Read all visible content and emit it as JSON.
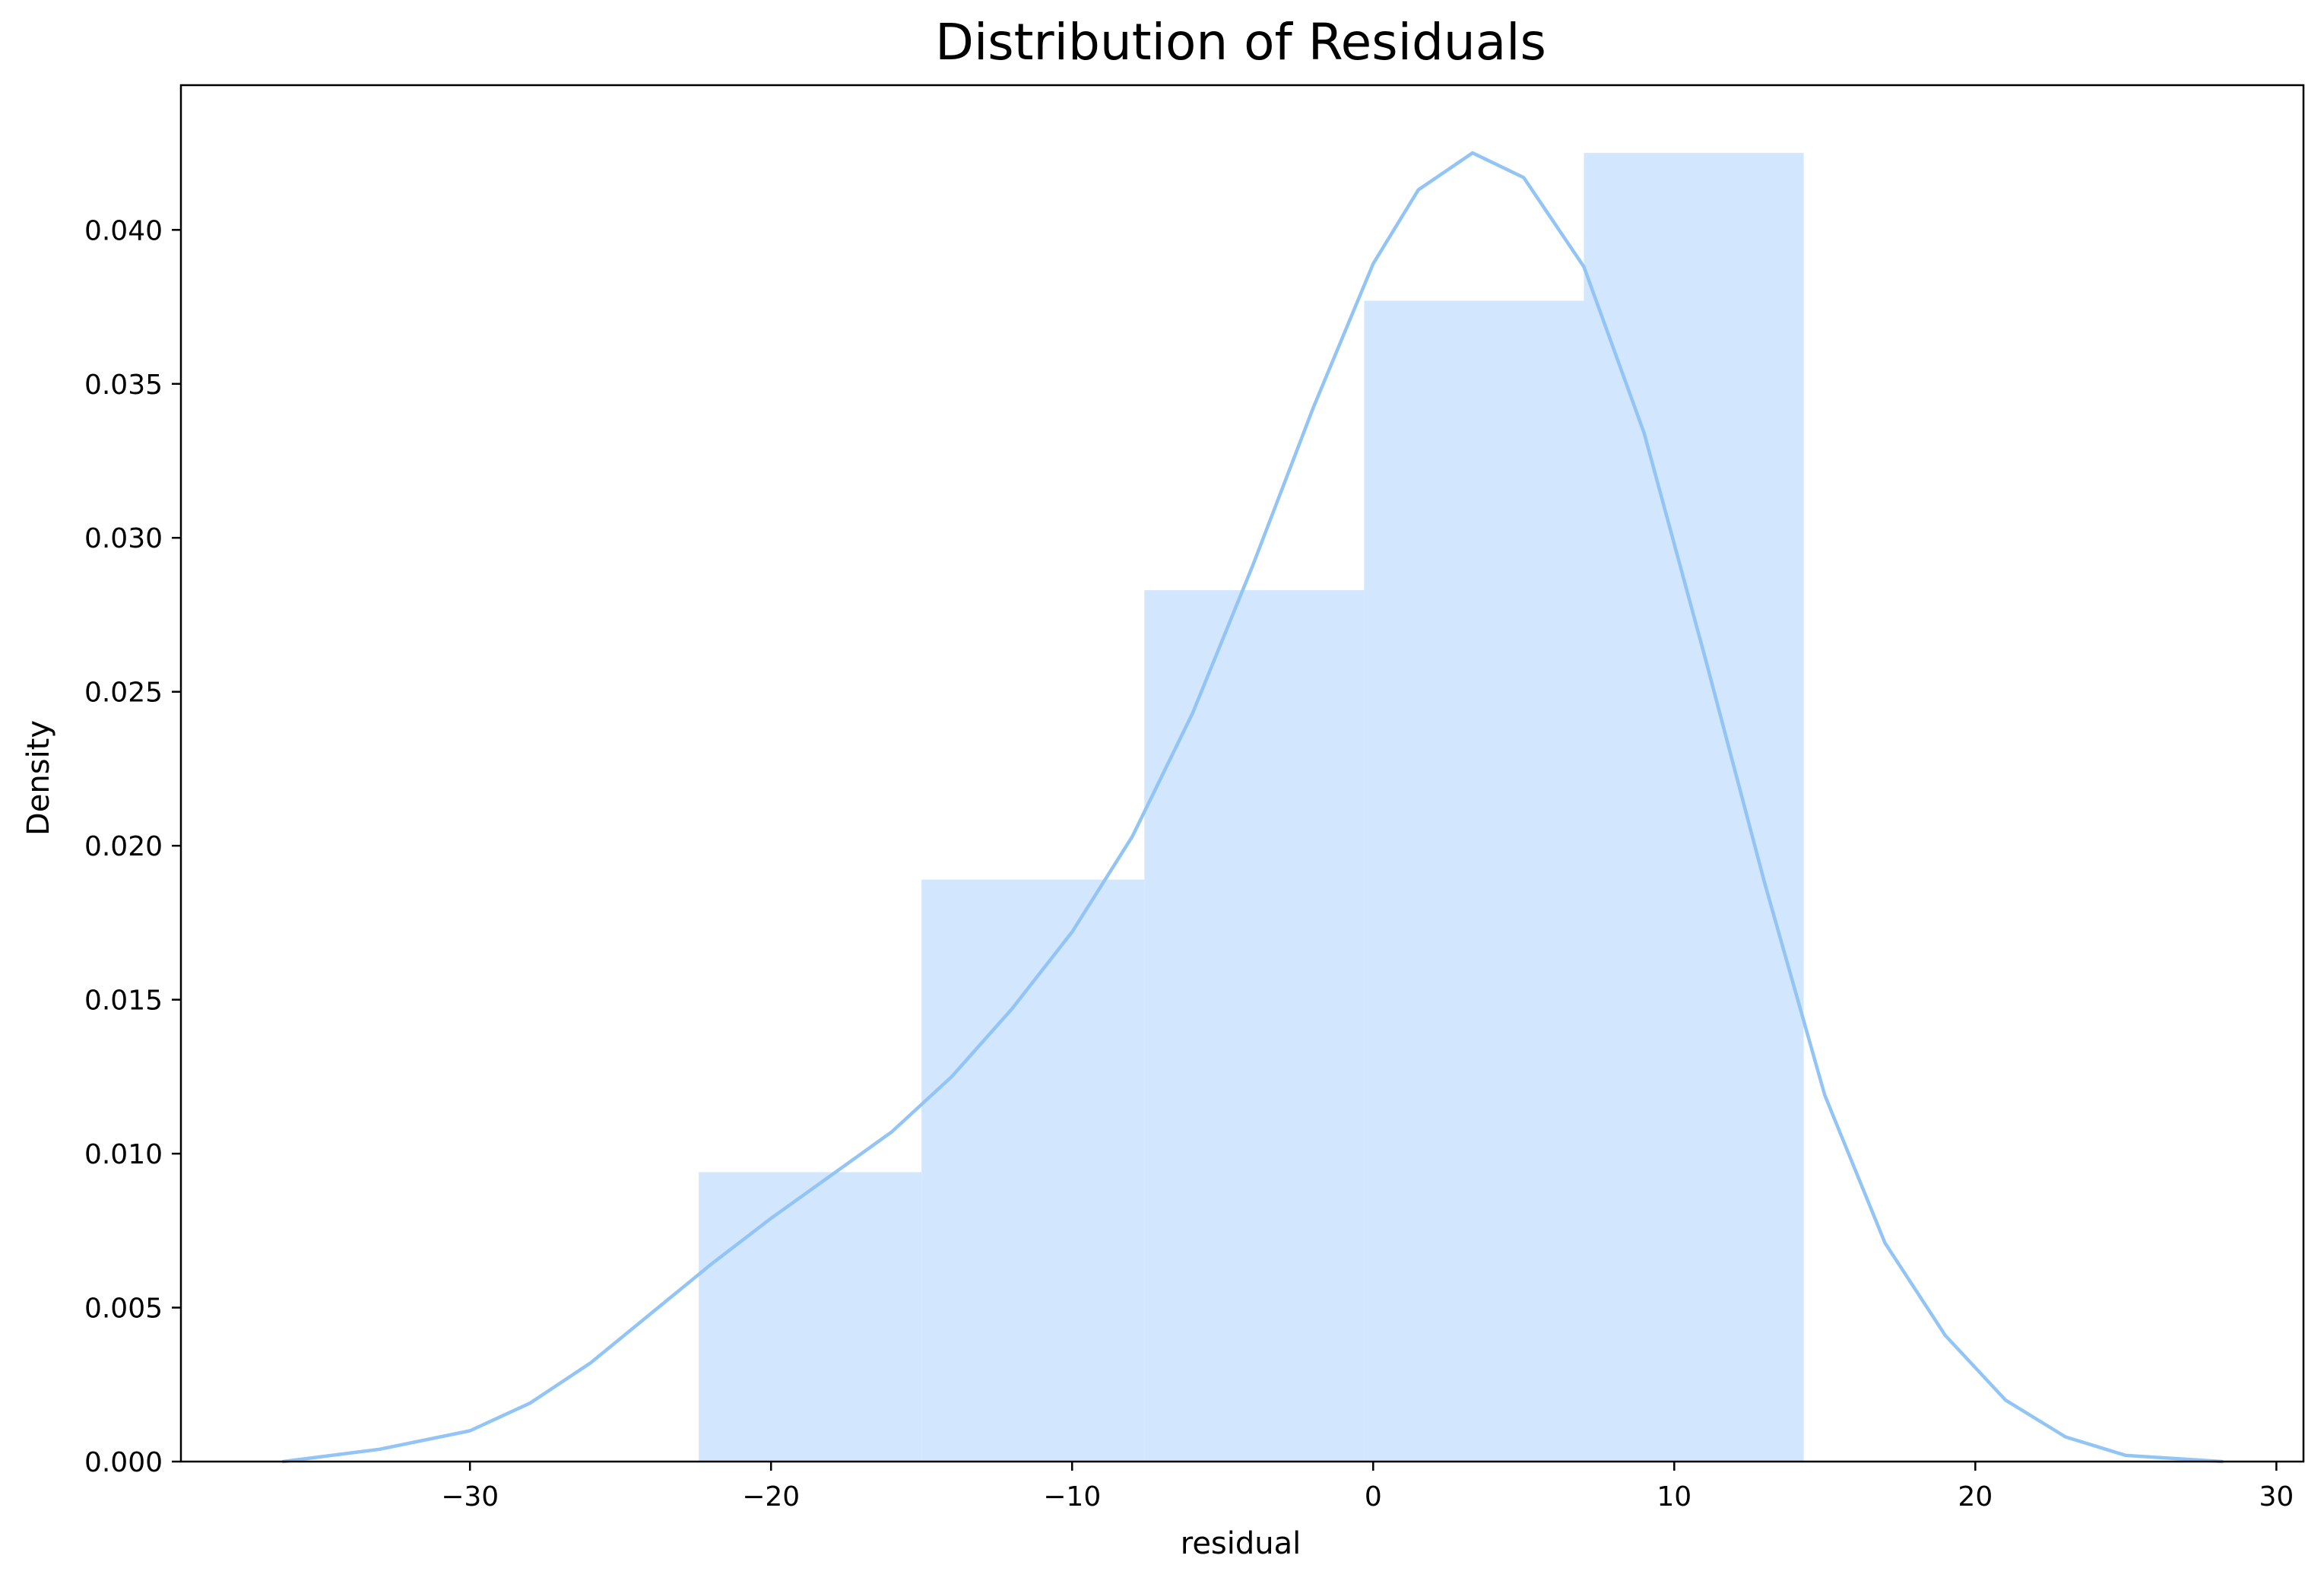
{
  "chart_data": {
    "type": "bar",
    "title": "Distribution of Residuals",
    "xlabel": "residual",
    "ylabel": "Density",
    "xlim": [
      -39.6,
      30.9
    ],
    "ylim": [
      0,
      0.0447
    ],
    "xticks": [
      -30,
      -20,
      -10,
      0,
      10,
      20,
      30
    ],
    "xtick_labels": [
      "−30",
      "−20",
      "−10",
      "0",
      "10",
      "20",
      "30"
    ],
    "yticks": [
      0.0,
      0.005,
      0.01,
      0.015,
      0.02,
      0.025,
      0.03,
      0.035,
      0.04
    ],
    "ytick_labels": [
      "0.000",
      "0.005",
      "0.010",
      "0.015",
      "0.020",
      "0.025",
      "0.030",
      "0.035",
      "0.040"
    ],
    "bins": [
      {
        "x0": -22.4,
        "x1": -15.0,
        "density": 0.0094
      },
      {
        "x0": -15.0,
        "x1": -7.6,
        "density": 0.0189
      },
      {
        "x0": -7.6,
        "x1": -0.3,
        "density": 0.0283
      },
      {
        "x0": -0.3,
        "x1": 7.0,
        "density": 0.0377
      },
      {
        "x0": 7.0,
        "x1": 14.3,
        "density": 0.0425
      }
    ],
    "kde": [
      [
        -36.2,
        0.0
      ],
      [
        -33.0,
        0.0004
      ],
      [
        -30.0,
        0.001
      ],
      [
        -28.0,
        0.0019
      ],
      [
        -26.0,
        0.0032
      ],
      [
        -24.0,
        0.0048
      ],
      [
        -22.0,
        0.0064
      ],
      [
        -20.0,
        0.0079
      ],
      [
        -18.0,
        0.0093
      ],
      [
        -16.0,
        0.0107
      ],
      [
        -14.0,
        0.0125
      ],
      [
        -12.0,
        0.0147
      ],
      [
        -10.0,
        0.0172
      ],
      [
        -8.0,
        0.0203
      ],
      [
        -6.0,
        0.0243
      ],
      [
        -4.0,
        0.0291
      ],
      [
        -2.0,
        0.0342
      ],
      [
        0.0,
        0.0389
      ],
      [
        1.5,
        0.0413
      ],
      [
        3.3,
        0.0425
      ],
      [
        5.0,
        0.0417
      ],
      [
        7.0,
        0.0388
      ],
      [
        9.0,
        0.0334
      ],
      [
        11.0,
        0.0262
      ],
      [
        13.0,
        0.0188
      ],
      [
        15.0,
        0.0119
      ],
      [
        17.0,
        0.0071
      ],
      [
        19.0,
        0.0041
      ],
      [
        21.0,
        0.002
      ],
      [
        23.0,
        0.0008
      ],
      [
        25.0,
        0.0002
      ],
      [
        28.2,
        0.0
      ]
    ],
    "bar_color": "#d2e6fd",
    "kde_color": "#92c4f5",
    "grid": false,
    "legend": "none"
  }
}
